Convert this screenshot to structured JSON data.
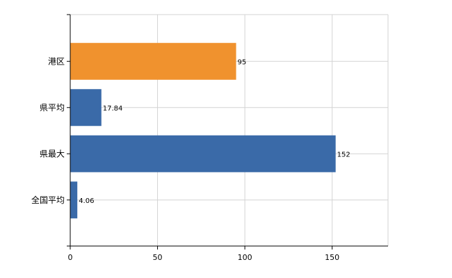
{
  "chart_data": {
    "type": "bar",
    "orientation": "horizontal",
    "categories": [
      "港区",
      "県平均",
      "県最大",
      "全国平均"
    ],
    "values": [
      95,
      17.84,
      152,
      4.06
    ],
    "data_labels": [
      "95",
      "17.84",
      "152",
      "4.06"
    ],
    "bar_colors": [
      "#f0922e",
      "#3a6aa8",
      "#3a6aa8",
      "#3a6aa8"
    ],
    "title": "",
    "xlabel": "",
    "ylabel": "",
    "xlim": [
      0,
      182
    ],
    "x_ticks": [
      0,
      50,
      100,
      150
    ],
    "grid": true,
    "legend": "none"
  }
}
